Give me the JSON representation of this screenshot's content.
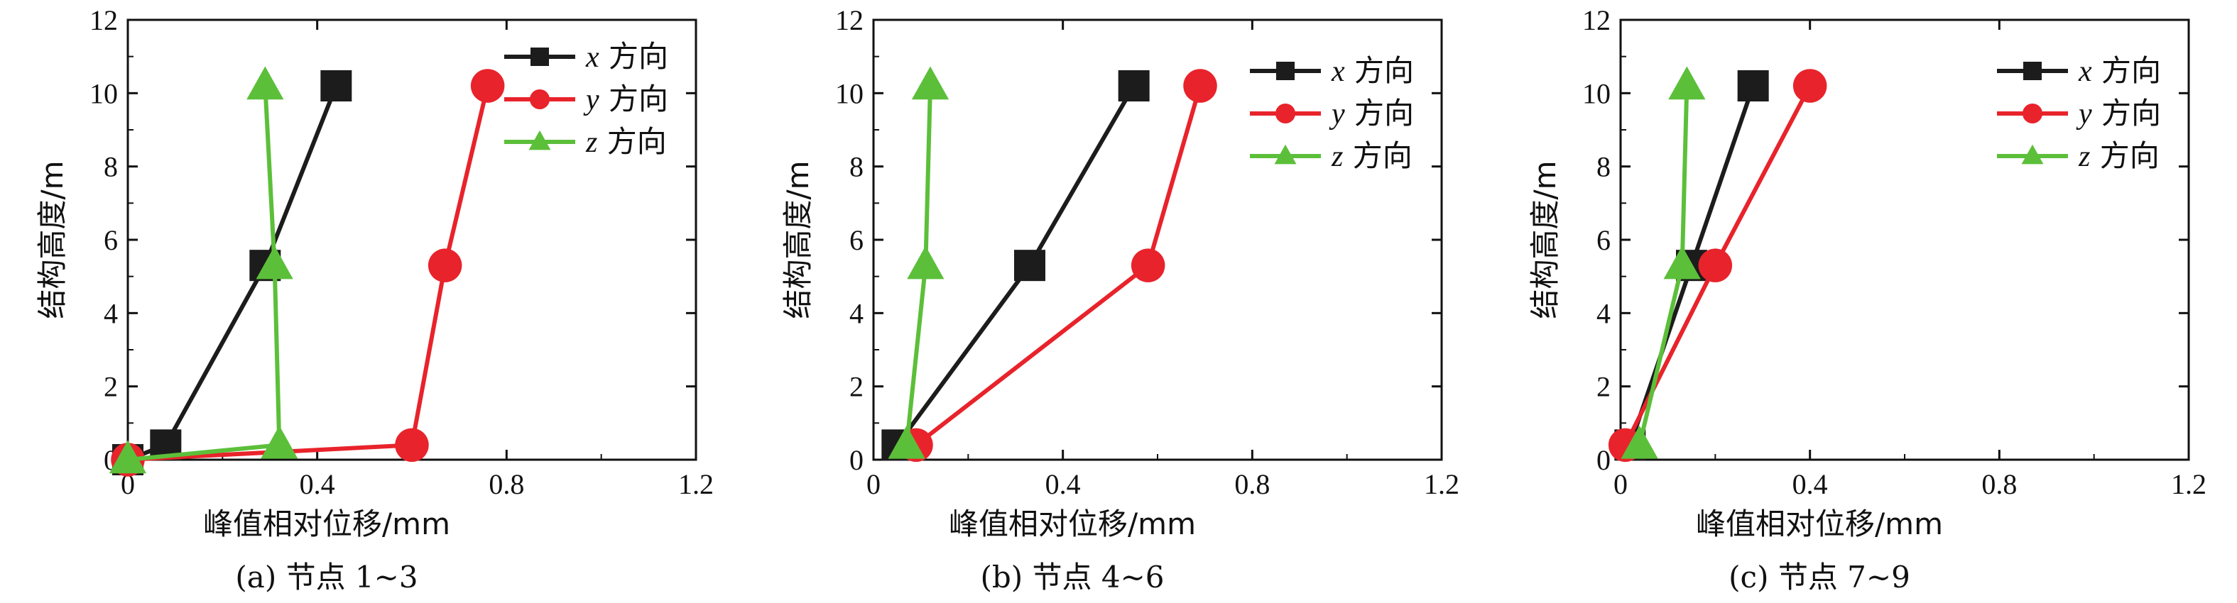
{
  "colors": {
    "x": "#1c1c1c",
    "y": "#e8232b",
    "z": "#5cbf3a"
  },
  "legend": [
    {
      "var": "x",
      "text": " 方向",
      "marker": "square"
    },
    {
      "var": "y",
      "text": " 方向",
      "marker": "circle"
    },
    {
      "var": "z",
      "text": " 方向",
      "marker": "triangle"
    }
  ],
  "chart_data": [
    {
      "type": "line",
      "caption": "(a) 节点 1~3",
      "xlabel": "峰值相对位移/mm",
      "ylabel": "结构高度/m",
      "xlim": [
        0,
        1.2
      ],
      "ylim": [
        0,
        12
      ],
      "xticks": [
        "0",
        "0.4",
        "0.8",
        "1.2"
      ],
      "yticks": [
        "0",
        "2",
        "4",
        "6",
        "8",
        "10",
        "12"
      ],
      "legend_position": "top-right",
      "series": [
        {
          "name": "x 方向",
          "marker": "square",
          "x": [
            0.0,
            0.08,
            0.29,
            0.44
          ],
          "y": [
            0.0,
            0.4,
            5.3,
            10.2
          ]
        },
        {
          "name": "y 方向",
          "marker": "circle",
          "x": [
            0.0,
            0.6,
            0.67,
            0.76
          ],
          "y": [
            0.0,
            0.4,
            5.3,
            10.2
          ]
        },
        {
          "name": "z 方向",
          "marker": "triangle",
          "x": [
            0.0,
            0.32,
            0.31,
            0.29
          ],
          "y": [
            0.0,
            0.4,
            5.3,
            10.2
          ]
        }
      ]
    },
    {
      "type": "line",
      "caption": "(b) 节点 4~6",
      "xlabel": "峰值相对位移/mm",
      "ylabel": "结构高度/m",
      "xlim": [
        0,
        1.2
      ],
      "ylim": [
        0,
        12
      ],
      "xticks": [
        "0",
        "0.4",
        "0.8",
        "1.2"
      ],
      "yticks": [
        "0",
        "2",
        "4",
        "6",
        "8",
        "10",
        "12"
      ],
      "legend_position": "top-right",
      "series": [
        {
          "name": "x 方向",
          "marker": "square",
          "x": [
            0.05,
            0.33,
            0.55
          ],
          "y": [
            0.4,
            5.3,
            10.2
          ]
        },
        {
          "name": "y 方向",
          "marker": "circle",
          "x": [
            0.09,
            0.58,
            0.69
          ],
          "y": [
            0.4,
            5.3,
            10.2
          ]
        },
        {
          "name": "z 方向",
          "marker": "triangle",
          "x": [
            0.07,
            0.11,
            0.12
          ],
          "y": [
            0.4,
            5.3,
            10.2
          ]
        }
      ]
    },
    {
      "type": "line",
      "caption": "(c) 节点 7~9",
      "xlabel": "峰值相对位移/mm",
      "ylabel": "结构高度/m",
      "xlim": [
        0,
        1.2
      ],
      "ylim": [
        0,
        12
      ],
      "xticks": [
        "0",
        "0.4",
        "0.8",
        "1.2"
      ],
      "yticks": [
        "0",
        "2",
        "4",
        "6",
        "8",
        "10",
        "12"
      ],
      "legend_position": "top-right",
      "series": [
        {
          "name": "x 方向",
          "marker": "square",
          "x": [
            0.02,
            0.15,
            0.28
          ],
          "y": [
            0.4,
            5.3,
            10.2
          ]
        },
        {
          "name": "y 方向",
          "marker": "circle",
          "x": [
            0.01,
            0.2,
            0.4
          ],
          "y": [
            0.4,
            5.3,
            10.2
          ]
        },
        {
          "name": "z 方向",
          "marker": "triangle",
          "x": [
            0.04,
            0.13,
            0.14
          ],
          "y": [
            0.4,
            5.3,
            10.2
          ]
        }
      ]
    }
  ]
}
